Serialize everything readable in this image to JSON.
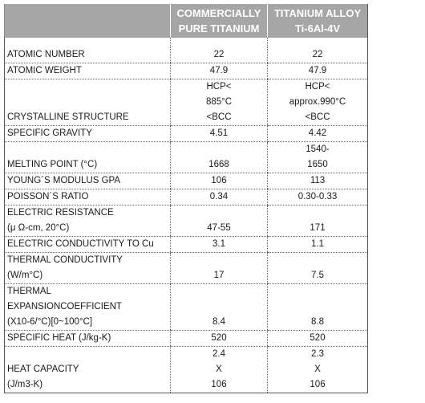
{
  "header": {
    "col1": "",
    "col2": [
      "COMMERCIALLY",
      "PURE TITANIUM"
    ],
    "col3": [
      "TITANIUM ALLOY",
      "Ti-6Al-4V"
    ]
  },
  "rows": [
    {
      "label": [
        "ATOMIC NUMBER"
      ],
      "pure": [
        "22"
      ],
      "alloy": [
        "22"
      ]
    },
    {
      "label": [
        "ATOMIC WEIGHT"
      ],
      "pure": [
        "47.9"
      ],
      "alloy": [
        "47.9"
      ]
    },
    {
      "label": [
        "CRYSTALLINE STRUCTURE"
      ],
      "pure": [
        "HCP<",
        "885°C",
        "<BCC"
      ],
      "alloy": [
        "HCP<",
        "approx.990°C",
        "<BCC"
      ]
    },
    {
      "label": [
        "SPECIFIC GRAVITY"
      ],
      "pure": [
        "4.51"
      ],
      "alloy": [
        "4.42"
      ]
    },
    {
      "label": [
        "MELTING POINT  (°C)"
      ],
      "pure": [
        "1668"
      ],
      "alloy": [
        "1540-",
        "1650"
      ]
    },
    {
      "label": [
        "YOUNG´S MODULUS GPA"
      ],
      "pure": [
        "106"
      ],
      "alloy": [
        "113"
      ]
    },
    {
      "label": [
        "POISSON´S RATIO"
      ],
      "pure": [
        "0.34"
      ],
      "alloy": [
        "0.30-0.33"
      ]
    },
    {
      "label": [
        "ELECTRIC RESISTANCE",
        "(μ Ω-cm, 20°C)"
      ],
      "pure": [
        "47-55"
      ],
      "alloy": [
        "171"
      ]
    },
    {
      "label": [
        "ELECTRIC CONDUCTIVITY TO Cu"
      ],
      "pure": [
        "3.1"
      ],
      "alloy": [
        "1.1"
      ]
    },
    {
      "label": [
        "THERMAL CONDUCTIVITY",
        " (W/m°C)"
      ],
      "pure": [
        "17"
      ],
      "alloy": [
        "7.5"
      ]
    },
    {
      "label": [
        "THERMAL",
        "EXPANSIONCOEFFICIENT",
        "(X10-6/°C)[0~100°C]"
      ],
      "pure": [
        "8.4"
      ],
      "alloy": [
        "8.8"
      ]
    },
    {
      "label": [
        "SPECIFIC HEAT (J/kg-K)"
      ],
      "pure": [
        "520"
      ],
      "alloy": [
        "520"
      ]
    },
    {
      "label": [
        "HEAT CAPACITY",
        "(J/m3-K)"
      ],
      "pure": [
        "2.4",
        "X",
        "106"
      ],
      "alloy": [
        "2.3",
        "X",
        "106"
      ]
    }
  ]
}
